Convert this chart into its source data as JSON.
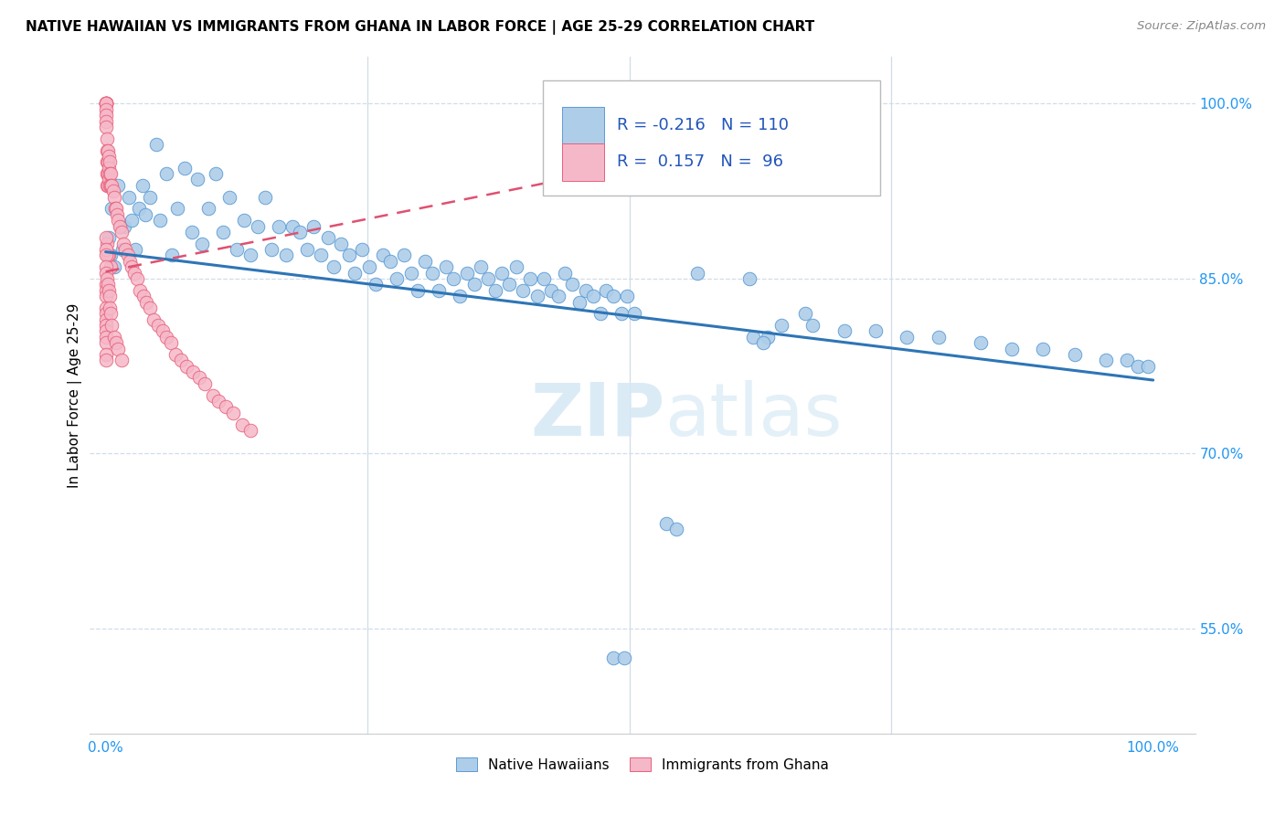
{
  "title": "NATIVE HAWAIIAN VS IMMIGRANTS FROM GHANA IN LABOR FORCE | AGE 25-29 CORRELATION CHART",
  "source": "Source: ZipAtlas.com",
  "ylabel": "In Labor Force | Age 25-29",
  "legend_label_blue": "Native Hawaiians",
  "legend_label_pink": "Immigrants from Ghana",
  "R_blue": -0.216,
  "N_blue": 110,
  "R_pink": 0.157,
  "N_pink": 96,
  "blue_color": "#aecde8",
  "blue_edge_color": "#5b9bd5",
  "pink_color": "#f5b8c8",
  "pink_edge_color": "#e8607a",
  "blue_line_color": "#2e75b6",
  "pink_line_color": "#e05070",
  "watermark_color": "#d5e8f5",
  "grid_color": "#d0dde8",
  "y_tick_vals": [
    0.5,
    0.55,
    0.7,
    0.85,
    1.0
  ],
  "y_tick_labels": [
    "",
    "55.0%",
    "70.0%",
    "85.0%",
    "100.0%"
  ],
  "ylim": [
    0.46,
    1.04
  ],
  "xlim": [
    -0.015,
    1.04
  ],
  "blue_line_x0": 0.0,
  "blue_line_y0": 0.873,
  "blue_line_x1": 1.0,
  "blue_line_y1": 0.763,
  "pink_line_x0": 0.0,
  "pink_line_y0": 0.856,
  "pink_line_x1": 0.42,
  "pink_line_y1": 0.932,
  "blue_x": [
    0.003,
    0.005,
    0.006,
    0.008,
    0.012,
    0.014,
    0.016,
    0.018,
    0.022,
    0.025,
    0.028,
    0.032,
    0.035,
    0.038,
    0.042,
    0.048,
    0.052,
    0.058,
    0.063,
    0.068,
    0.075,
    0.082,
    0.088,
    0.092,
    0.098,
    0.105,
    0.112,
    0.118,
    0.125,
    0.132,
    0.138,
    0.145,
    0.152,
    0.158,
    0.165,
    0.172,
    0.178,
    0.185,
    0.192,
    0.198,
    0.205,
    0.212,
    0.218,
    0.225,
    0.232,
    0.238,
    0.245,
    0.252,
    0.258,
    0.265,
    0.272,
    0.278,
    0.285,
    0.292,
    0.298,
    0.305,
    0.312,
    0.318,
    0.325,
    0.332,
    0.338,
    0.345,
    0.352,
    0.358,
    0.365,
    0.372,
    0.378,
    0.385,
    0.392,
    0.398,
    0.405,
    0.412,
    0.418,
    0.425,
    0.432,
    0.438,
    0.445,
    0.452,
    0.458,
    0.465,
    0.472,
    0.478,
    0.485,
    0.492,
    0.498,
    0.505,
    0.535,
    0.545,
    0.565,
    0.615,
    0.645,
    0.675,
    0.705,
    0.735,
    0.765,
    0.795,
    0.835,
    0.865,
    0.895,
    0.925,
    0.955,
    0.975,
    0.985,
    0.995,
    0.618,
    0.632,
    0.485,
    0.495,
    0.668,
    0.628
  ],
  "blue_y": [
    0.885,
    0.87,
    0.91,
    0.86,
    0.93,
    0.895,
    0.875,
    0.895,
    0.92,
    0.9,
    0.875,
    0.91,
    0.93,
    0.905,
    0.92,
    0.965,
    0.9,
    0.94,
    0.87,
    0.91,
    0.945,
    0.89,
    0.935,
    0.88,
    0.91,
    0.94,
    0.89,
    0.92,
    0.875,
    0.9,
    0.87,
    0.895,
    0.92,
    0.875,
    0.895,
    0.87,
    0.895,
    0.89,
    0.875,
    0.895,
    0.87,
    0.885,
    0.86,
    0.88,
    0.87,
    0.855,
    0.875,
    0.86,
    0.845,
    0.87,
    0.865,
    0.85,
    0.87,
    0.855,
    0.84,
    0.865,
    0.855,
    0.84,
    0.86,
    0.85,
    0.835,
    0.855,
    0.845,
    0.86,
    0.85,
    0.84,
    0.855,
    0.845,
    0.86,
    0.84,
    0.85,
    0.835,
    0.85,
    0.84,
    0.835,
    0.855,
    0.845,
    0.83,
    0.84,
    0.835,
    0.82,
    0.84,
    0.835,
    0.82,
    0.835,
    0.82,
    0.64,
    0.635,
    0.855,
    0.85,
    0.81,
    0.81,
    0.805,
    0.805,
    0.8,
    0.8,
    0.795,
    0.79,
    0.79,
    0.785,
    0.78,
    0.78,
    0.775,
    0.775,
    0.8,
    0.8,
    0.525,
    0.525,
    0.82,
    0.795
  ],
  "pink_x": [
    0.0,
    0.0,
    0.0,
    0.0,
    0.0,
    0.0,
    0.0,
    0.0,
    0.0,
    0.0,
    0.001,
    0.001,
    0.001,
    0.001,
    0.001,
    0.002,
    0.002,
    0.002,
    0.002,
    0.003,
    0.003,
    0.003,
    0.004,
    0.004,
    0.004,
    0.005,
    0.005,
    0.006,
    0.007,
    0.008,
    0.009,
    0.01,
    0.011,
    0.012,
    0.013,
    0.015,
    0.017,
    0.019,
    0.021,
    0.023,
    0.025,
    0.027,
    0.03,
    0.033,
    0.036,
    0.039,
    0.042,
    0.046,
    0.05,
    0.054,
    0.058,
    0.062,
    0.067,
    0.072,
    0.077,
    0.083,
    0.089,
    0.095,
    0.102,
    0.108,
    0.115,
    0.122,
    0.13,
    0.138,
    0.005,
    0.003,
    0.002,
    0.001,
    0.0,
    0.0,
    0.0,
    0.0,
    0.0,
    0.0,
    0.0,
    0.0,
    0.0,
    0.0,
    0.0,
    0.0,
    0.0,
    0.0,
    0.0,
    0.0,
    0.0,
    0.001,
    0.002,
    0.003,
    0.004,
    0.004,
    0.005,
    0.006,
    0.008,
    0.01,
    0.012,
    0.015
  ],
  "pink_y": [
    1.0,
    1.0,
    1.0,
    1.0,
    1.0,
    1.0,
    0.995,
    0.99,
    0.985,
    0.98,
    0.97,
    0.96,
    0.95,
    0.94,
    0.93,
    0.96,
    0.95,
    0.94,
    0.93,
    0.955,
    0.945,
    0.935,
    0.95,
    0.94,
    0.93,
    0.94,
    0.93,
    0.93,
    0.925,
    0.92,
    0.91,
    0.91,
    0.905,
    0.9,
    0.895,
    0.89,
    0.88,
    0.875,
    0.87,
    0.865,
    0.86,
    0.855,
    0.85,
    0.84,
    0.835,
    0.83,
    0.825,
    0.815,
    0.81,
    0.805,
    0.8,
    0.795,
    0.785,
    0.78,
    0.775,
    0.77,
    0.765,
    0.76,
    0.75,
    0.745,
    0.74,
    0.735,
    0.725,
    0.72,
    0.86,
    0.87,
    0.87,
    0.88,
    0.885,
    0.875,
    0.87,
    0.86,
    0.855,
    0.845,
    0.84,
    0.835,
    0.825,
    0.82,
    0.815,
    0.81,
    0.805,
    0.8,
    0.795,
    0.785,
    0.78,
    0.85,
    0.845,
    0.84,
    0.835,
    0.825,
    0.82,
    0.81,
    0.8,
    0.795,
    0.79,
    0.78
  ]
}
